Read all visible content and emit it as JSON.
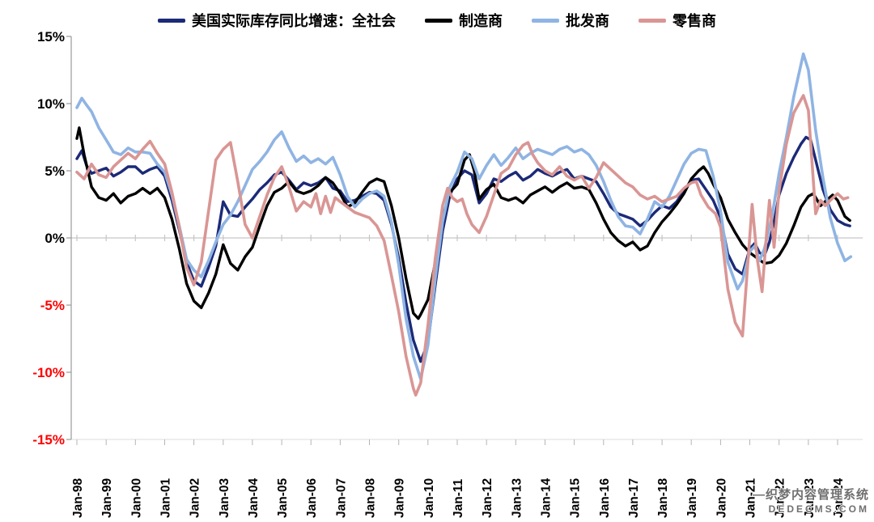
{
  "watermark": {
    "line1": "—织梦内容管理系统",
    "line2": "DEDECMS.COM"
  },
  "colors": {
    "total": "#1B2A78",
    "manufacturers": "#000000",
    "wholesalers": "#8FB4E3",
    "retailers": "#D99694",
    "negative_tick": "#FF0000",
    "positive_tick": "#000000",
    "zero_line": "#C6C6C6",
    "axis": "#9A9A9A"
  },
  "chart_data": {
    "type": "line",
    "title": "",
    "xlabel": "",
    "ylabel": "",
    "ylim": [
      -15,
      15
    ],
    "xlim": [
      1997.8,
      2024.85
    ],
    "grid": "zero-line-only",
    "legend_position": "top",
    "y_ticks": [
      {
        "label": "15%",
        "value": 15,
        "color": "#000000"
      },
      {
        "label": "10%",
        "value": 10,
        "color": "#000000"
      },
      {
        "label": "5%",
        "value": 5,
        "color": "#000000"
      },
      {
        "label": "0%",
        "value": 0,
        "color": "#000000"
      },
      {
        "label": "-5%",
        "value": -5,
        "color": "#FF0000"
      },
      {
        "label": "-10%",
        "value": -10,
        "color": "#FF0000"
      },
      {
        "label": "-15%",
        "value": -15,
        "color": "#FF0000"
      }
    ],
    "x_ticks": [
      {
        "label": "Jan-98",
        "year": 1998
      },
      {
        "label": "Jan-99",
        "year": 1999
      },
      {
        "label": "Jan-00",
        "year": 2000
      },
      {
        "label": "Jan-01",
        "year": 2001
      },
      {
        "label": "Jan-02",
        "year": 2002
      },
      {
        "label": "Jan-03",
        "year": 2003
      },
      {
        "label": "Jan-04",
        "year": 2004
      },
      {
        "label": "Jan-05",
        "year": 2005
      },
      {
        "label": "Jan-06",
        "year": 2006
      },
      {
        "label": "Jan-07",
        "year": 2007
      },
      {
        "label": "Jan-08",
        "year": 2008
      },
      {
        "label": "Jan-09",
        "year": 2009
      },
      {
        "label": "Jan-10",
        "year": 2010
      },
      {
        "label": "Jan-11",
        "year": 2011
      },
      {
        "label": "Jan-12",
        "year": 2012
      },
      {
        "label": "Jan-13",
        "year": 2013
      },
      {
        "label": "Jan-14",
        "year": 2014
      },
      {
        "label": "Jan-15",
        "year": 2015
      },
      {
        "label": "Jan-16",
        "year": 2016
      },
      {
        "label": "Jan-17",
        "year": 2017
      },
      {
        "label": "Jan-18",
        "year": 2018
      },
      {
        "label": "Jan-19",
        "year": 2019
      },
      {
        "label": "Jan-20",
        "year": 2020
      },
      {
        "label": "Jan-21",
        "year": 2021
      },
      {
        "label": "Jan-22",
        "year": 2022
      },
      {
        "label": "Jan-23",
        "year": 2023
      },
      {
        "label": "Jan-24",
        "year": 2024
      }
    ],
    "series": [
      {
        "key": "total",
        "name": "美国实际库存同比增速：全社会",
        "color": "#1B2A78",
        "width": 3.4,
        "x": [
          1998.0,
          1998.17,
          1998.33,
          1998.5,
          1998.75,
          1999.0,
          1999.25,
          1999.5,
          1999.75,
          2000.0,
          2000.25,
          2000.5,
          2000.75,
          2001.0,
          2001.25,
          2001.5,
          2001.75,
          2002.0,
          2002.25,
          2002.5,
          2002.75,
          2003.0,
          2003.25,
          2003.5,
          2003.75,
          2004.0,
          2004.25,
          2004.5,
          2004.75,
          2005.0,
          2005.25,
          2005.5,
          2005.75,
          2006.0,
          2006.25,
          2006.5,
          2006.75,
          2007.0,
          2007.25,
          2007.5,
          2007.75,
          2008.0,
          2008.25,
          2008.5,
          2008.75,
          2009.0,
          2009.25,
          2009.5,
          2009.75,
          2010.0,
          2010.25,
          2010.5,
          2010.75,
          2011.0,
          2011.25,
          2011.5,
          2011.75,
          2012.0,
          2012.25,
          2012.5,
          2012.75,
          2013.0,
          2013.25,
          2013.5,
          2013.75,
          2014.0,
          2014.25,
          2014.5,
          2014.75,
          2015.0,
          2015.25,
          2015.5,
          2015.75,
          2016.0,
          2016.25,
          2016.5,
          2016.75,
          2017.0,
          2017.25,
          2017.5,
          2017.75,
          2018.0,
          2018.25,
          2018.5,
          2018.75,
          2019.0,
          2019.25,
          2019.5,
          2019.75,
          2020.0,
          2020.25,
          2020.5,
          2020.75,
          2021.0,
          2021.17,
          2021.33,
          2021.5,
          2021.67,
          2021.83,
          2022.0,
          2022.25,
          2022.5,
          2022.75,
          2022.92,
          2023.08,
          2023.25,
          2023.5,
          2023.75,
          2024.0,
          2024.25,
          2024.42
        ],
        "y": [
          5.9,
          6.5,
          5.4,
          4.8,
          5.0,
          5.2,
          4.6,
          4.9,
          5.3,
          5.3,
          4.8,
          5.1,
          5.3,
          4.6,
          2.8,
          0.6,
          -1.8,
          -3.2,
          -3.6,
          -2.2,
          -0.6,
          2.7,
          1.7,
          1.6,
          2.3,
          2.9,
          3.6,
          4.1,
          4.7,
          4.9,
          4.3,
          3.6,
          4.1,
          3.9,
          4.1,
          4.5,
          3.7,
          3.5,
          2.7,
          2.8,
          3.1,
          3.4,
          3.3,
          2.8,
          1.0,
          -1.5,
          -4.8,
          -7.6,
          -9.2,
          -7.8,
          -3.5,
          0.5,
          3.2,
          4.4,
          5.0,
          4.7,
          2.6,
          3.3,
          4.4,
          4.2,
          4.6,
          4.9,
          4.3,
          4.6,
          5.1,
          4.8,
          4.6,
          4.9,
          5.1,
          4.4,
          4.6,
          4.4,
          4.2,
          3.3,
          2.3,
          1.8,
          1.6,
          1.4,
          0.9,
          1.3,
          1.9,
          2.4,
          2.2,
          2.7,
          3.5,
          4.3,
          4.4,
          3.6,
          2.8,
          1.5,
          -1.2,
          -2.3,
          -2.7,
          -0.8,
          -0.4,
          -1.1,
          -1.3,
          -0.3,
          1.2,
          3.2,
          4.8,
          6.0,
          7.0,
          7.5,
          7.3,
          5.8,
          3.6,
          2.1,
          1.3,
          1.0,
          0.9
        ]
      },
      {
        "key": "manufacturers",
        "name": "制造商",
        "color": "#000000",
        "width": 3.4,
        "x": [
          1998.0,
          1998.08,
          1998.25,
          1998.5,
          1998.75,
          1999.0,
          1999.25,
          1999.5,
          1999.75,
          2000.0,
          2000.25,
          2000.5,
          2000.75,
          2001.0,
          2001.25,
          2001.5,
          2001.75,
          2002.0,
          2002.25,
          2002.5,
          2002.75,
          2003.0,
          2003.25,
          2003.5,
          2003.75,
          2004.0,
          2004.25,
          2004.5,
          2004.75,
          2005.0,
          2005.25,
          2005.5,
          2005.75,
          2006.0,
          2006.25,
          2006.5,
          2006.75,
          2007.0,
          2007.25,
          2007.5,
          2007.75,
          2008.0,
          2008.25,
          2008.5,
          2008.75,
          2009.0,
          2009.25,
          2009.5,
          2009.67,
          2009.75,
          2010.0,
          2010.25,
          2010.5,
          2010.75,
          2011.0,
          2011.25,
          2011.42,
          2011.58,
          2011.75,
          2012.0,
          2012.25,
          2012.5,
          2012.75,
          2013.0,
          2013.25,
          2013.5,
          2013.75,
          2014.0,
          2014.25,
          2014.5,
          2014.75,
          2015.0,
          2015.25,
          2015.5,
          2015.75,
          2016.0,
          2016.25,
          2016.5,
          2016.75,
          2017.0,
          2017.25,
          2017.5,
          2017.75,
          2018.0,
          2018.25,
          2018.5,
          2018.75,
          2019.0,
          2019.25,
          2019.42,
          2019.58,
          2019.75,
          2020.0,
          2020.25,
          2020.5,
          2020.75,
          2021.0,
          2021.25,
          2021.5,
          2021.75,
          2022.0,
          2022.25,
          2022.5,
          2022.75,
          2023.0,
          2023.17,
          2023.42,
          2023.67,
          2023.83,
          2024.0,
          2024.25,
          2024.42
        ],
        "y": [
          7.4,
          8.2,
          6.2,
          3.8,
          3.0,
          2.8,
          3.3,
          2.6,
          3.1,
          3.3,
          3.7,
          3.3,
          3.7,
          3.0,
          1.4,
          -0.8,
          -3.4,
          -4.7,
          -5.2,
          -4.1,
          -2.7,
          -0.5,
          -1.9,
          -2.4,
          -1.4,
          -0.7,
          0.9,
          2.4,
          3.4,
          3.7,
          4.2,
          3.5,
          3.3,
          3.5,
          3.9,
          4.5,
          4.1,
          3.3,
          2.3,
          2.6,
          3.4,
          4.1,
          4.4,
          4.2,
          2.4,
          0.0,
          -3.0,
          -5.6,
          -6.0,
          -5.7,
          -4.6,
          -1.8,
          1.5,
          3.4,
          4.0,
          5.8,
          6.2,
          5.0,
          2.9,
          3.6,
          4.0,
          3.0,
          2.8,
          3.0,
          2.6,
          3.2,
          3.5,
          3.8,
          3.4,
          3.8,
          4.1,
          3.7,
          3.8,
          3.6,
          2.6,
          1.4,
          0.4,
          -0.2,
          -0.6,
          -0.3,
          -0.9,
          -0.6,
          0.4,
          1.2,
          1.8,
          2.5,
          3.3,
          4.4,
          5.0,
          5.3,
          4.8,
          4.0,
          3.0,
          1.4,
          0.4,
          -0.5,
          -1.1,
          -1.5,
          -1.9,
          -1.8,
          -1.3,
          -0.4,
          0.9,
          2.3,
          3.1,
          3.3,
          2.4,
          2.9,
          3.2,
          2.8,
          1.6,
          1.3
        ]
      },
      {
        "key": "wholesalers",
        "name": "批发商",
        "color": "#8FB4E3",
        "width": 3.6,
        "x": [
          1998.0,
          1998.17,
          1998.33,
          1998.5,
          1998.75,
          1999.0,
          1999.25,
          1999.5,
          1999.75,
          2000.0,
          2000.25,
          2000.5,
          2000.75,
          2001.0,
          2001.25,
          2001.5,
          2001.75,
          2002.0,
          2002.25,
          2002.5,
          2002.75,
          2003.0,
          2003.25,
          2003.5,
          2003.75,
          2004.0,
          2004.25,
          2004.5,
          2004.75,
          2005.0,
          2005.25,
          2005.5,
          2005.75,
          2006.0,
          2006.25,
          2006.5,
          2006.75,
          2007.0,
          2007.25,
          2007.5,
          2007.75,
          2008.0,
          2008.25,
          2008.5,
          2008.75,
          2009.0,
          2009.25,
          2009.5,
          2009.75,
          2010.0,
          2010.25,
          2010.5,
          2010.75,
          2011.0,
          2011.25,
          2011.5,
          2011.75,
          2012.0,
          2012.25,
          2012.5,
          2012.75,
          2013.0,
          2013.25,
          2013.5,
          2013.75,
          2014.0,
          2014.25,
          2014.5,
          2014.75,
          2015.0,
          2015.25,
          2015.5,
          2015.75,
          2016.0,
          2016.25,
          2016.5,
          2016.75,
          2017.0,
          2017.25,
          2017.5,
          2017.75,
          2018.0,
          2018.25,
          2018.5,
          2018.75,
          2019.0,
          2019.25,
          2019.5,
          2019.75,
          2020.0,
          2020.25,
          2020.58,
          2020.75,
          2021.0,
          2021.17,
          2021.33,
          2021.5,
          2021.75,
          2022.0,
          2022.25,
          2022.5,
          2022.83,
          2023.0,
          2023.25,
          2023.5,
          2023.75,
          2024.0,
          2024.25,
          2024.45
        ],
        "y": [
          9.7,
          10.4,
          9.9,
          9.4,
          8.2,
          7.3,
          6.4,
          6.2,
          6.7,
          6.4,
          6.4,
          6.3,
          5.5,
          4.9,
          3.2,
          0.9,
          -1.6,
          -2.4,
          -2.9,
          -1.7,
          -0.3,
          1.0,
          1.7,
          2.7,
          3.9,
          5.1,
          5.7,
          6.4,
          7.3,
          7.9,
          6.7,
          5.7,
          6.1,
          5.6,
          5.9,
          5.5,
          6.0,
          4.7,
          3.1,
          2.3,
          2.9,
          3.3,
          3.5,
          3.1,
          1.2,
          -2.0,
          -6.0,
          -8.8,
          -10.5,
          -8.0,
          -3.0,
          1.2,
          3.8,
          4.9,
          6.4,
          5.9,
          4.4,
          5.4,
          6.2,
          5.4,
          6.0,
          6.7,
          5.9,
          6.3,
          6.6,
          6.4,
          6.2,
          6.6,
          6.8,
          6.4,
          6.6,
          6.2,
          5.4,
          4.2,
          2.8,
          1.6,
          0.9,
          0.8,
          0.3,
          1.4,
          2.7,
          2.3,
          3.1,
          4.3,
          5.5,
          6.3,
          6.6,
          6.5,
          4.6,
          2.0,
          -1.8,
          -3.8,
          -3.2,
          -1.0,
          -0.6,
          -1.7,
          -0.8,
          1.5,
          4.8,
          7.5,
          10.5,
          13.7,
          12.5,
          8.0,
          4.5,
          1.5,
          -0.4,
          -1.7,
          -1.4
        ]
      },
      {
        "key": "retailers",
        "name": "零售商",
        "color": "#D99694",
        "width": 3.6,
        "x": [
          1998.0,
          1998.25,
          1998.5,
          1998.75,
          1999.0,
          1999.25,
          1999.5,
          1999.75,
          2000.0,
          2000.25,
          2000.5,
          2000.75,
          2001.0,
          2001.25,
          2001.5,
          2001.75,
          2002.0,
          2002.25,
          2002.5,
          2002.75,
          2003.0,
          2003.25,
          2003.5,
          2003.75,
          2004.0,
          2004.25,
          2004.5,
          2004.75,
          2005.0,
          2005.25,
          2005.5,
          2005.75,
          2006.0,
          2006.17,
          2006.33,
          2006.5,
          2006.67,
          2006.83,
          2007.0,
          2007.25,
          2007.5,
          2007.75,
          2008.0,
          2008.25,
          2008.5,
          2008.75,
          2009.0,
          2009.25,
          2009.5,
          2009.58,
          2009.75,
          2010.0,
          2010.25,
          2010.5,
          2010.67,
          2010.83,
          2011.0,
          2011.17,
          2011.33,
          2011.5,
          2011.75,
          2012.0,
          2012.25,
          2012.5,
          2012.75,
          2013.0,
          2013.25,
          2013.42,
          2013.58,
          2013.75,
          2014.0,
          2014.25,
          2014.5,
          2014.75,
          2015.0,
          2015.25,
          2015.5,
          2015.75,
          2016.0,
          2016.25,
          2016.5,
          2016.75,
          2017.0,
          2017.25,
          2017.5,
          2017.75,
          2018.0,
          2018.25,
          2018.5,
          2018.75,
          2019.0,
          2019.17,
          2019.33,
          2019.58,
          2019.83,
          2020.0,
          2020.25,
          2020.5,
          2020.75,
          2021.08,
          2021.25,
          2021.42,
          2021.58,
          2021.67,
          2021.83,
          2022.0,
          2022.25,
          2022.5,
          2022.83,
          2023.0,
          2023.25,
          2023.42,
          2023.58,
          2023.75,
          2024.0,
          2024.2,
          2024.35
        ],
        "y": [
          4.9,
          4.4,
          5.5,
          4.7,
          4.5,
          5.3,
          5.8,
          6.3,
          5.9,
          6.6,
          7.2,
          6.3,
          5.5,
          3.4,
          0.8,
          -2.2,
          -3.5,
          -1.8,
          2.0,
          5.8,
          6.6,
          7.1,
          4.2,
          1.0,
          0.0,
          1.6,
          3.2,
          4.5,
          5.3,
          3.8,
          2.0,
          2.7,
          2.3,
          3.3,
          1.8,
          3.1,
          1.9,
          3.0,
          2.7,
          2.3,
          1.9,
          1.7,
          1.5,
          0.9,
          -0.2,
          -2.8,
          -5.5,
          -8.8,
          -11.2,
          -11.7,
          -10.8,
          -6.5,
          -1.5,
          2.4,
          3.7,
          3.0,
          2.7,
          2.9,
          1.8,
          1.0,
          0.4,
          1.6,
          3.2,
          4.8,
          5.2,
          6.2,
          6.9,
          7.1,
          6.2,
          5.6,
          5.0,
          4.7,
          5.3,
          4.6,
          4.3,
          4.6,
          3.7,
          4.5,
          5.6,
          5.1,
          4.6,
          4.1,
          3.8,
          3.2,
          2.9,
          3.1,
          2.7,
          2.9,
          3.1,
          3.7,
          4.1,
          4.2,
          3.2,
          2.3,
          1.8,
          0.8,
          -3.8,
          -6.3,
          -7.3,
          2.5,
          -1.5,
          -4.0,
          0.5,
          2.8,
          -0.7,
          3.5,
          7.0,
          9.3,
          10.6,
          9.5,
          1.8,
          2.8,
          2.4,
          2.8,
          3.3,
          2.9,
          3.0
        ]
      }
    ]
  }
}
